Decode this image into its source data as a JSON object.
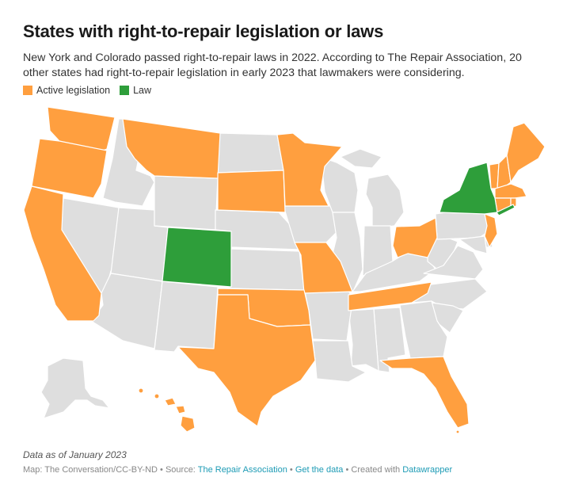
{
  "title": "States with right-to-repair legislation or laws",
  "subtitle": "New York and Colorado passed right-to-repair laws in 2022. According to The Repair Association, 20 other states had right-to-repair legislation in early 2023 that lawmakers were considering.",
  "legend": [
    {
      "label": "Active legislation",
      "color": "#ff9f3f"
    },
    {
      "label": "Law",
      "color": "#2e9e3a"
    }
  ],
  "colors": {
    "active": "#ff9f3f",
    "law": "#2e9e3a",
    "none": "#dedede",
    "border": "#ffffff"
  },
  "states": {
    "law": [
      "New York",
      "Colorado"
    ],
    "active_legislation": [
      "Washington",
      "Oregon",
      "California",
      "Montana",
      "South Dakota",
      "Minnesota",
      "Missouri",
      "Oklahoma",
      "Texas",
      "Tennessee",
      "Ohio",
      "Florida",
      "New Jersey",
      "Vermont",
      "New Hampshire",
      "Maine",
      "Massachusetts",
      "Connecticut",
      "Rhode Island",
      "Hawaii"
    ]
  },
  "note": "Data as of January 2023",
  "footer": {
    "credit": "Map: The Conversation/CC-BY-ND",
    "source_prefix": "Source:",
    "source_link": "The Repair Association",
    "data_link": "Get the data",
    "created_prefix": "Created with",
    "tool_link": "Datawrapper"
  }
}
